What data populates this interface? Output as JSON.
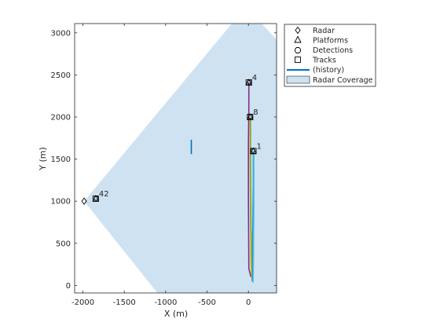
{
  "chart_data": {
    "type": "scatter",
    "xlabel": "X (m)",
    "ylabel": "Y (m)",
    "xlim": [
      -2100,
      340
    ],
    "ylim": [
      -90,
      3110
    ],
    "xticks": [
      -2000,
      -1500,
      -1000,
      -500,
      0
    ],
    "yticks": [
      0,
      500,
      1000,
      1500,
      2000,
      2500,
      3000
    ],
    "grid": false,
    "legend": {
      "placement": "outside-top-right",
      "entries": [
        "Radar",
        "Platforms",
        "Detections",
        "Tracks",
        "(history)",
        "Radar Coverage"
      ]
    },
    "colors": {
      "coverage": "#cfe2f1",
      "history_blue": "#0072bd",
      "purple": "#7e2f8e",
      "olive": "#77ac30",
      "yellow": "#edb120",
      "cyan": "#4dbeee"
    },
    "radar": {
      "x": -1985,
      "y": 1000
    },
    "coverage_polygon": [
      [
        -1985,
        1000
      ],
      [
        -1100,
        -90
      ],
      [
        340,
        -90
      ],
      [
        340,
        2920
      ],
      [
        160,
        3110
      ],
      [
        -200,
        3110
      ]
    ],
    "platforms": [
      {
        "x": 5,
        "y": 2410
      },
      {
        "x": 20,
        "y": 2000
      },
      {
        "x": 60,
        "y": 1595
      },
      {
        "x": -1845,
        "y": 1030
      }
    ],
    "tracks": [
      {
        "label": "4",
        "x": 5,
        "y": 2410
      },
      {
        "label": "8",
        "x": 20,
        "y": 2000
      },
      {
        "label": "1",
        "x": 60,
        "y": 1595
      },
      {
        "label": "42",
        "x": -1845,
        "y": 1030
      }
    ],
    "detections": [
      {
        "x": 10,
        "y": 2415
      },
      {
        "x": 25,
        "y": 2005
      },
      {
        "x": 55,
        "y": 1600
      },
      {
        "x": -1840,
        "y": 1035
      }
    ],
    "history": [
      {
        "color": "#7e2f8e",
        "points": [
          [
            5,
            2410
          ],
          [
            5,
            2100
          ],
          [
            0,
            1700
          ],
          [
            0,
            1000
          ],
          [
            5,
            200
          ],
          [
            30,
            100
          ]
        ]
      },
      {
        "color": "#edb120",
        "points": [
          [
            20,
            2000
          ],
          [
            20,
            1500
          ],
          [
            25,
            900
          ],
          [
            30,
            300
          ],
          [
            40,
            100
          ]
        ]
      },
      {
        "color": "#77ac30",
        "points": [
          [
            25,
            1990
          ],
          [
            25,
            1500
          ],
          [
            30,
            700
          ],
          [
            35,
            600
          ],
          [
            45,
            50
          ]
        ]
      },
      {
        "color": "#0072bd",
        "points": [
          [
            60,
            1595
          ],
          [
            60,
            1200
          ],
          [
            55,
            700
          ],
          [
            55,
            200
          ],
          [
            50,
            50
          ]
        ]
      },
      {
        "color": "#4dbeee",
        "points": [
          [
            65,
            1590
          ],
          [
            65,
            900
          ],
          [
            60,
            300
          ],
          [
            55,
            30
          ]
        ]
      },
      {
        "color": "#0072bd",
        "points": [
          [
            -690,
            1730
          ],
          [
            -690,
            1560
          ]
        ]
      }
    ]
  }
}
